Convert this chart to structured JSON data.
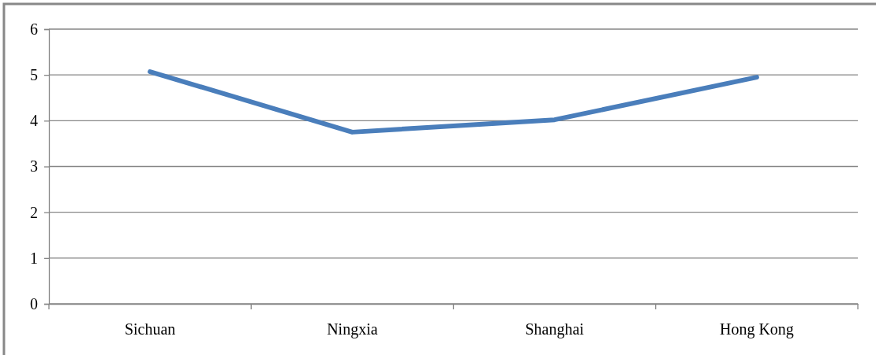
{
  "chart_data": {
    "type": "line",
    "categories": [
      "Sichuan",
      "Ningxia",
      "Shanghai",
      "Hong Kong"
    ],
    "series": [
      {
        "color": "#4a7ebb",
        "values": [
          5.07,
          3.75,
          4.02,
          4.95
        ]
      }
    ],
    "ylim": [
      0,
      6
    ],
    "yticks": [
      0,
      1,
      2,
      3,
      4,
      5,
      6
    ],
    "grid": "y",
    "marker": "none",
    "line_style": "solid"
  }
}
